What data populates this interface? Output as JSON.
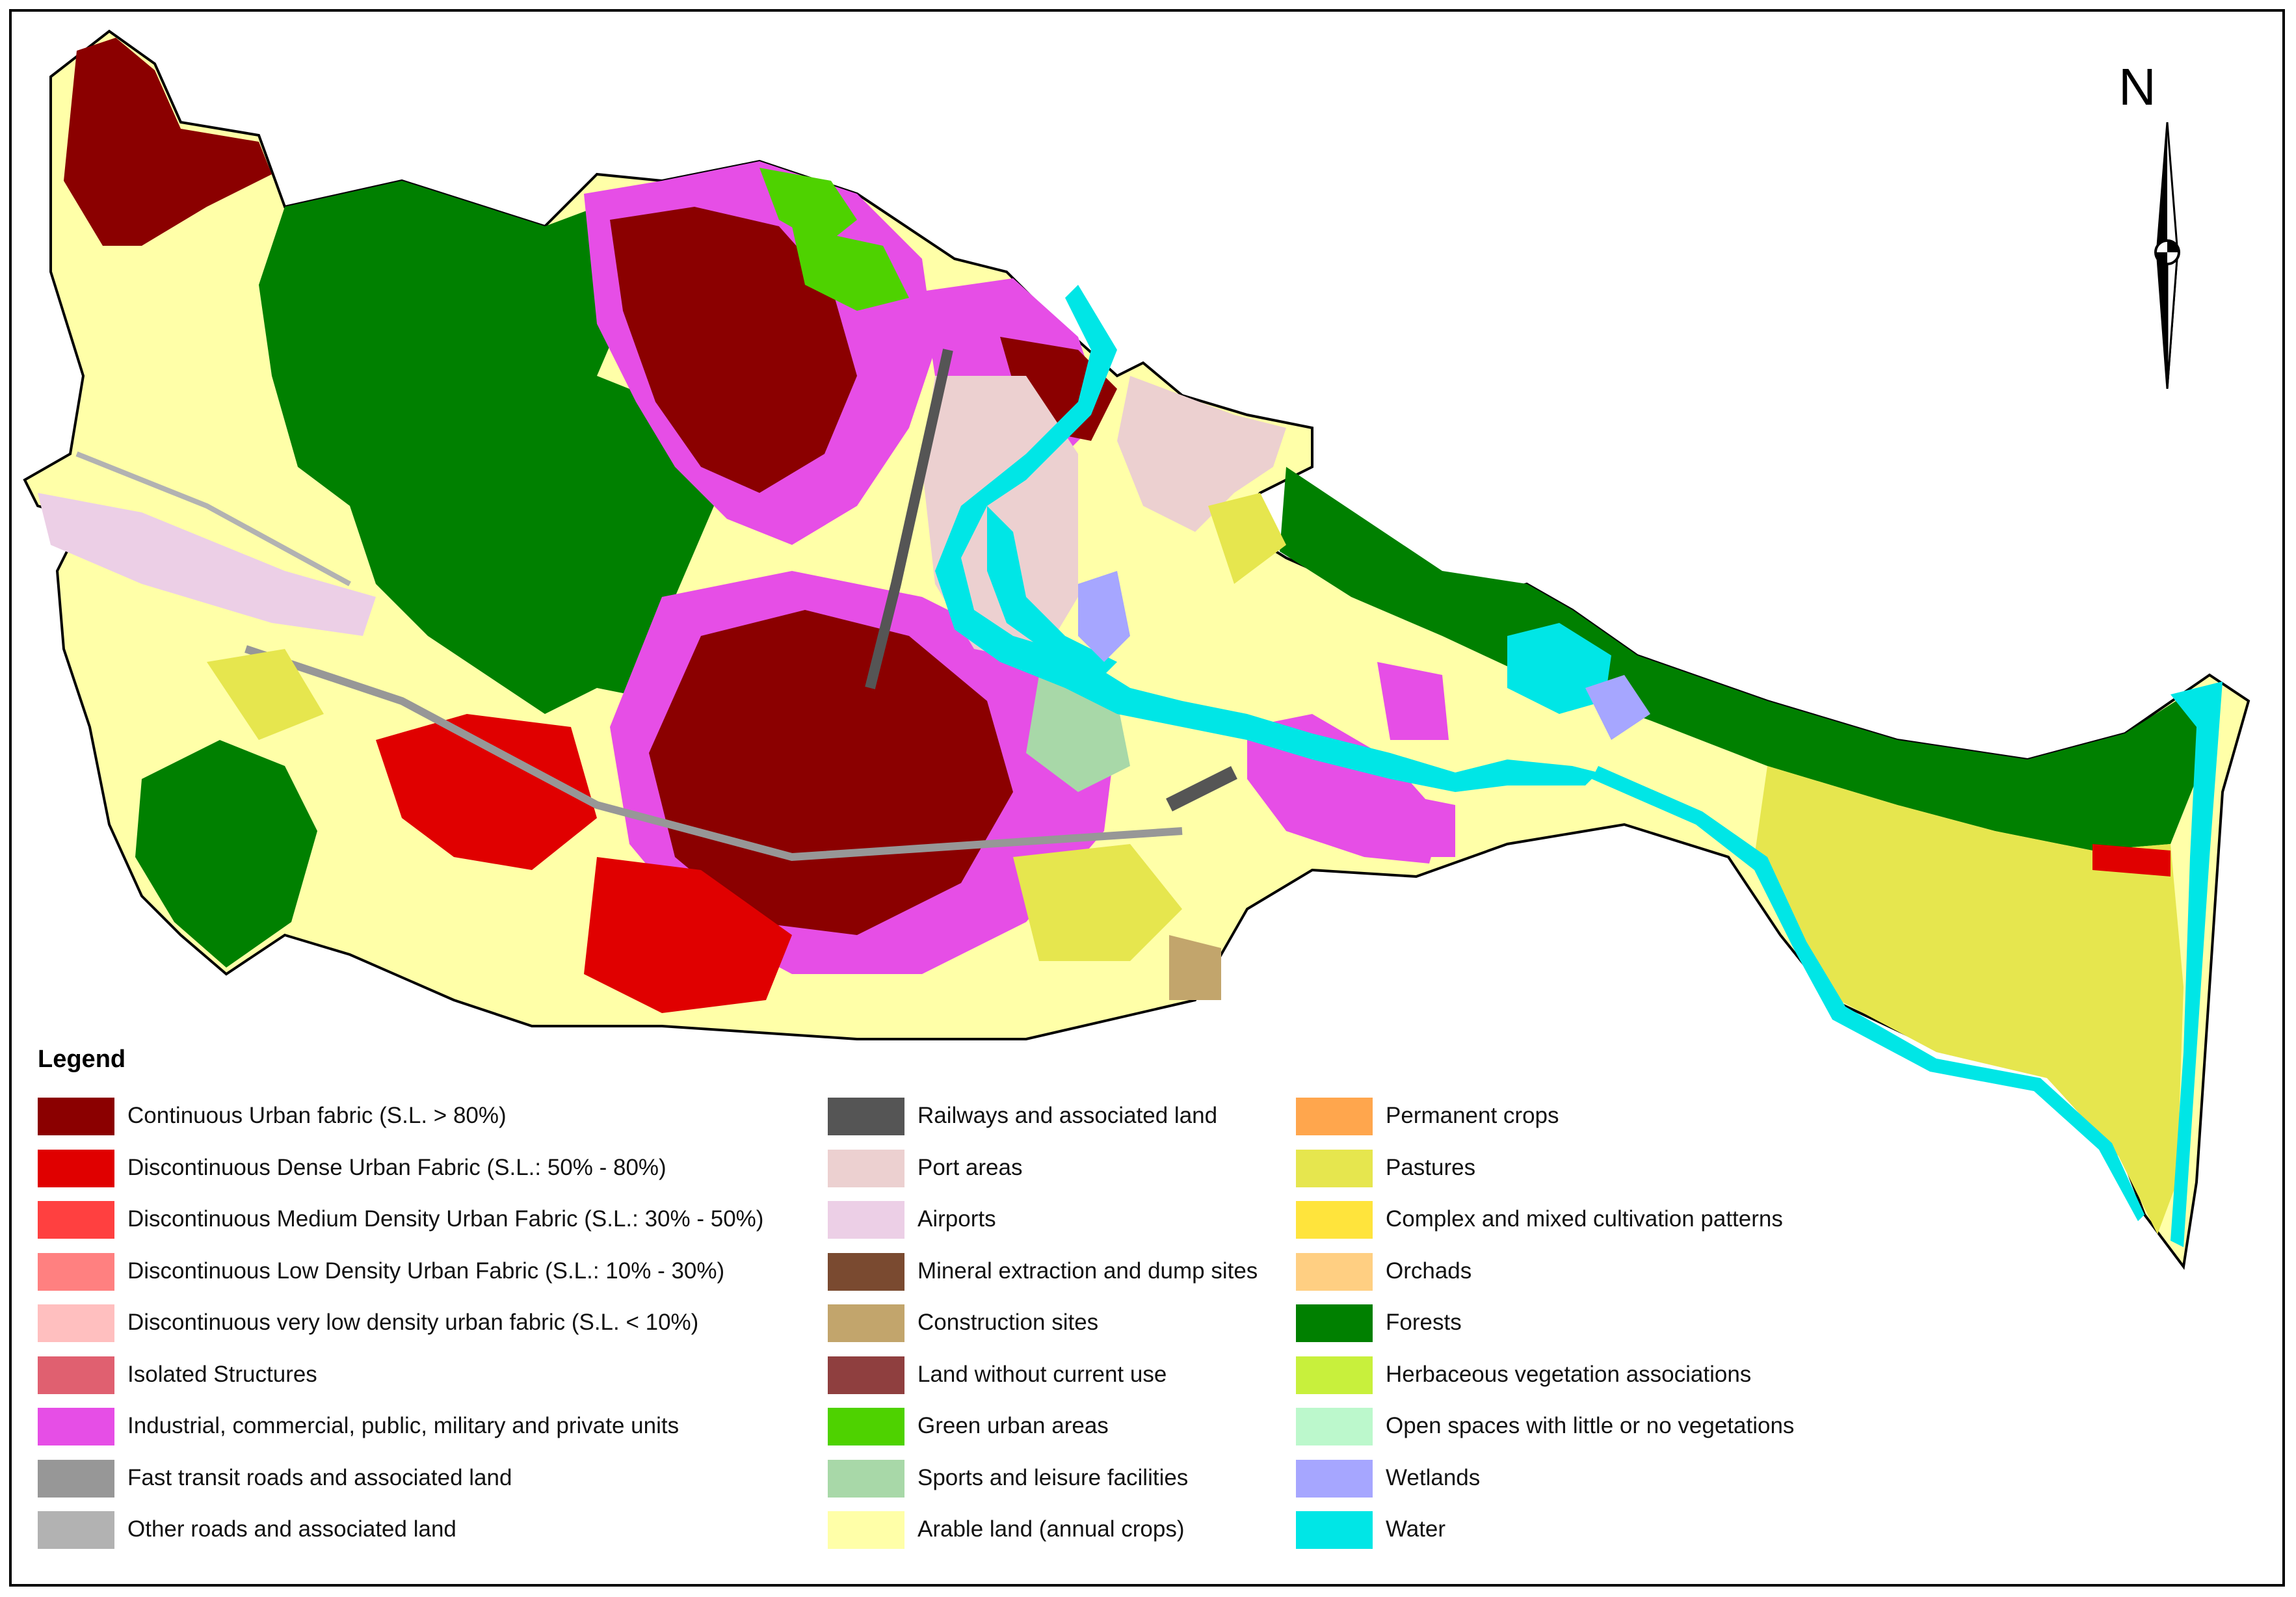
{
  "north_label": "N",
  "legend": {
    "title": "Legend",
    "columns": [
      [
        {
          "label": "Continuous Urban fabric (S.L. > 80%)",
          "color": "#8b0000"
        },
        {
          "label": "Discontinuous Dense Urban Fabric (S.L.: 50% - 80%)",
          "color": "#e00000"
        },
        {
          "label": "Discontinuous Medium Density Urban Fabric (S.L.: 30% - 50%)",
          "color": "#ff4040"
        },
        {
          "label": "Discontinuous Low Density Urban Fabric (S.L.: 10% - 30%)",
          "color": "#ff8080"
        },
        {
          "label": "Discontinuous very low density urban fabric (S.L. < 10%)",
          "color": "#ffbfbf"
        },
        {
          "label": "Isolated Structures",
          "color": "#e06070"
        },
        {
          "label": "Industrial, commercial, public, military and private units",
          "color": "#e64ee6"
        },
        {
          "label": "Fast transit roads and associated land",
          "color": "#979797"
        },
        {
          "label": " Other roads and associated land",
          "color": "#b2b2b2"
        }
      ],
      [
        {
          "label": "Railways and associated land",
          "color": "#555555"
        },
        {
          "label": "Port areas",
          "color": "#ecd0d0"
        },
        {
          "label": "Airports",
          "color": "#eccfe6"
        },
        {
          "label": "Mineral extraction and dump sites",
          "color": "#7a4a30"
        },
        {
          "label": "Construction sites",
          "color": "#c2a56c"
        },
        {
          "label": "Land without current use",
          "color": "#8f3f3f"
        },
        {
          "label": "Green urban areas",
          "color": "#4ed200"
        },
        {
          "label": "Sports and leisure facilities",
          "color": "#a8d8a8"
        },
        {
          "label": "Arable land (annual crops)",
          "color": "#ffffa8"
        }
      ],
      [
        {
          "label": "Permanent crops",
          "color": "#ffa64d"
        },
        {
          "label": "Pastures",
          "color": "#e6e64e"
        },
        {
          "label": "Complex and mixed cultivation patterns",
          "color": "#ffe43c"
        },
        {
          "label": "Orchads",
          "color": "#ffcf82"
        },
        {
          "label": "Forests",
          "color": "#008000"
        },
        {
          "label": "Herbaceous vegetation associations",
          "color": "#c8f03c"
        },
        {
          "label": "Open spaces with little or no vegetations",
          "color": "#bcf8cc"
        },
        {
          "label": "Wetlands",
          "color": "#a6a6ff"
        },
        {
          "label": "Water",
          "color": "#00e6e6"
        }
      ]
    ]
  }
}
